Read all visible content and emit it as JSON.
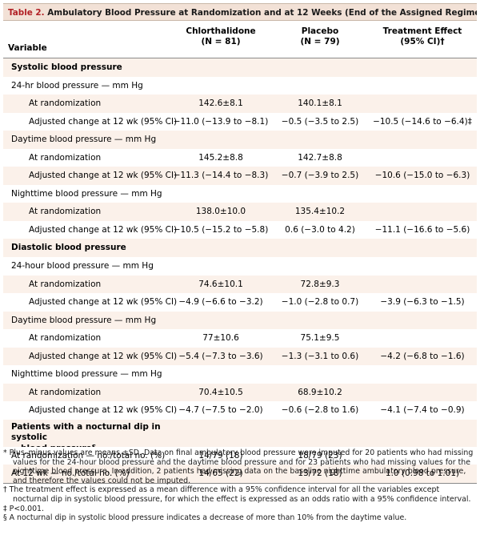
{
  "title": {
    "number": "Table 2.",
    "text": " Ambulatory Blood Pressure at Randomization and at 12 Weeks (End of the Assigned Regimen).*"
  },
  "header": {
    "variable": "Variable",
    "col1_line1": "Chlorthalidone",
    "col1_line2": "(N = 81)",
    "col2_line1": "Placebo",
    "col2_line2": "(N = 79)",
    "col3_line1": "Treatment Effect",
    "col3_line2": "(95% CI)†"
  },
  "rows": [
    {
      "label": "Systolic blood pressure",
      "kind": "section",
      "v1": "",
      "v2": "",
      "v3": ""
    },
    {
      "label": "24-hr blood pressure — mm Hg",
      "kind": "group",
      "v1": "",
      "v2": "",
      "v3": ""
    },
    {
      "label": "At randomization",
      "kind": "item",
      "v1": "142.6±8.1",
      "v2": "140.1±8.1",
      "v3": ""
    },
    {
      "label": "Adjusted change at 12 wk (95% CI)",
      "kind": "item",
      "v1": "−11.0 (−13.9 to −8.1)",
      "v2": "−0.5 (−3.5 to 2.5)",
      "v3": "−10.5 (−14.6 to −6.4)‡"
    },
    {
      "label": "Daytime blood pressure — mm Hg",
      "kind": "group",
      "v1": "",
      "v2": "",
      "v3": ""
    },
    {
      "label": "At randomization",
      "kind": "item",
      "v1": "145.2±8.8",
      "v2": "142.7±8.8",
      "v3": ""
    },
    {
      "label": "Adjusted change at 12 wk (95% CI)",
      "kind": "item",
      "v1": "−11.3 (−14.4 to −8.3)",
      "v2": "−0.7 (−3.9 to 2.5)",
      "v3": "−10.6 (−15.0 to −6.3)"
    },
    {
      "label": "Nighttime blood pressure — mm Hg",
      "kind": "group",
      "v1": "",
      "v2": "",
      "v3": ""
    },
    {
      "label": "At randomization",
      "kind": "item",
      "v1": "138.0±10.0",
      "v2": "135.4±10.2",
      "v3": ""
    },
    {
      "label": "Adjusted change at 12 wk (95% CI)",
      "kind": "item",
      "v1": "−10.5 (−15.2 to −5.8)",
      "v2": "0.6 (−3.0 to 4.2)",
      "v3": "−11.1 (−16.6 to −5.6)"
    },
    {
      "label": "Diastolic blood pressure",
      "kind": "section",
      "v1": "",
      "v2": "",
      "v3": ""
    },
    {
      "label": "24-hour blood pressure — mm Hg",
      "kind": "group",
      "v1": "",
      "v2": "",
      "v3": ""
    },
    {
      "label": "At randomization",
      "kind": "item",
      "v1": "74.6±10.1",
      "v2": "72.8±9.3",
      "v3": ""
    },
    {
      "label": "Adjusted change at 12 wk (95% CI)",
      "kind": "item",
      "v1": "−4.9 (−6.6 to −3.2)",
      "v2": "−1.0 (−2.8 to 0.7)",
      "v3": "−3.9 (−6.3 to −1.5)"
    },
    {
      "label": "Daytime blood pressure — mm Hg",
      "kind": "group",
      "v1": "",
      "v2": "",
      "v3": ""
    },
    {
      "label": "At randomization",
      "kind": "item",
      "v1": "77±10.6",
      "v2": "75.1±9.5",
      "v3": ""
    },
    {
      "label": "Adjusted change at 12 wk (95% CI)",
      "kind": "item",
      "v1": "−5.4 (−7.3 to −3.6)",
      "v2": "−1.3 (−3.1 to 0.6)",
      "v3": "−4.2 (−6.8 to −1.6)"
    },
    {
      "label": "Nighttime blood pressure — mm Hg",
      "kind": "group",
      "v1": "",
      "v2": "",
      "v3": ""
    },
    {
      "label": "At randomization",
      "kind": "item",
      "v1": "70.4±10.5",
      "v2": "68.9±10.2",
      "v3": ""
    },
    {
      "label": "Adjusted change at 12 wk (95% CI)",
      "kind": "item",
      "v1": "−4.7 (−7.5 to −2.0)",
      "v2": "−0.6 (−2.8 to 1.6)",
      "v3": "−4.1 (−7.4 to −0.9)"
    },
    {
      "label": "Patients with a nocturnal dip in systolic",
      "label2": "blood pressure§",
      "kind": "section-tall",
      "v1": "",
      "v2": "",
      "v3": ""
    },
    {
      "label": "At randomization — no./total no. (%)",
      "kind": "group",
      "v1": "14/79 (18)",
      "v2": "18/79 (23)",
      "v3": ""
    },
    {
      "label": "At 12 wk — no./total no. (%)",
      "kind": "group",
      "v1": "14/65 (22)",
      "v2": "13/72 (18)",
      "v3": "1.0 (0.98 to 1.01)"
    }
  ],
  "footnotes": [
    "* Plus–minus values are means ±SD. Data on final ambulatory blood pressure were imputed for 20 patients who had missing values for the 24-hour blood pressure and the daytime blood pressure and for 23 patients who had missing values for the nighttime blood pressure. In addition, 2 patients had missing data on the baseline nighttime ambulatory blood pressure, and therefore the values could not be imputed.",
    "† The treatment effect is expressed as a mean difference with a 95% confidence interval for all the variables except nocturnal dip in systolic blood pressure, for which the effect is expressed as an odds ratio with a 95% confidence interval.",
    "‡ P<0.001.",
    "§ A nocturnal dip in systolic blood pressure indicates a decrease of more than 10% from the daytime value."
  ]
}
